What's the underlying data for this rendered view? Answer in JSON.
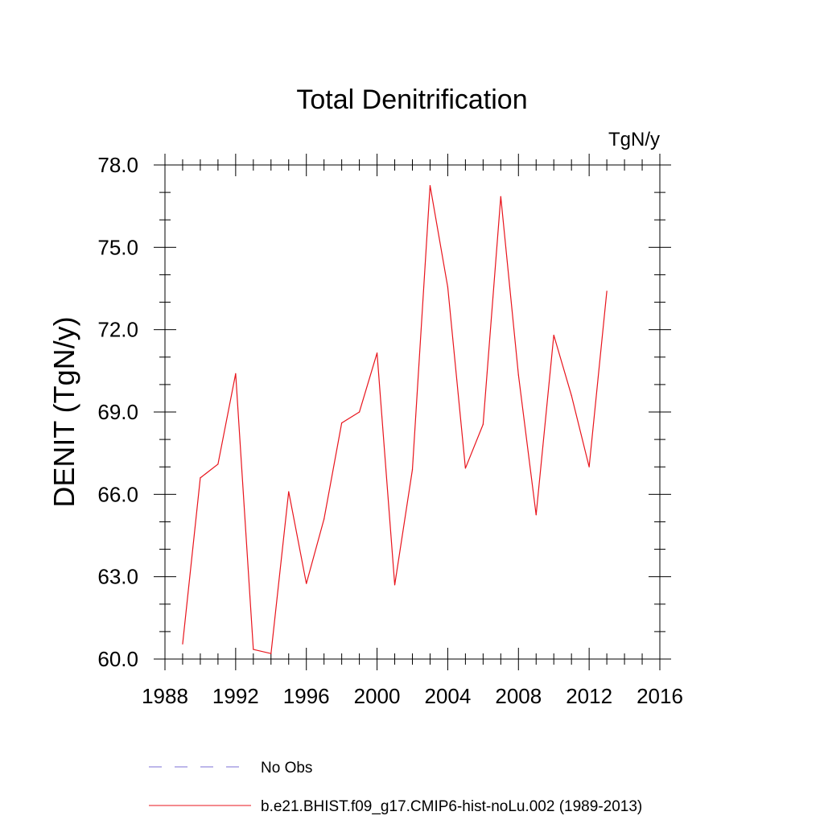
{
  "chart_data": {
    "type": "line",
    "title": "Total Denitrification",
    "units_label": "TgN/y",
    "ylabel": "DENIT  (TgN/y)",
    "xlabel": "",
    "xlim": [
      1988,
      2016
    ],
    "ylim": [
      60,
      78
    ],
    "x_ticks": [
      1988,
      1992,
      1996,
      2000,
      2004,
      2008,
      2012,
      2016
    ],
    "x_tick_labels": [
      "1988",
      "1992",
      "1996",
      "2000",
      "2004",
      "2008",
      "2012",
      "2016"
    ],
    "y_ticks": [
      60,
      63,
      66,
      69,
      72,
      75,
      78
    ],
    "y_tick_labels": [
      "60.0",
      "63.0",
      "66.0",
      "69.0",
      "72.0",
      "75.0",
      "78.0"
    ],
    "grid": false,
    "legend_placement": "bottom",
    "series": [
      {
        "name": "b.e21.BHIST.f09_g17.CMIP6-hist-noLu.002 (1989-2013)",
        "color": "#e8141c",
        "style": "solid",
        "x": [
          1989,
          1990,
          1991,
          1992,
          1993,
          1994,
          1995,
          1996,
          1997,
          1998,
          1999,
          2000,
          2001,
          2002,
          2003,
          2004,
          2005,
          2006,
          2007,
          2008,
          2009,
          2010,
          2011,
          2012,
          2013
        ],
        "values": [
          60.55,
          66.6,
          67.1,
          70.4,
          60.35,
          60.2,
          66.1,
          62.75,
          65.1,
          68.6,
          69.0,
          71.15,
          62.7,
          66.9,
          77.25,
          73.55,
          66.95,
          68.55,
          76.85,
          70.35,
          65.25,
          71.8,
          69.6,
          67.0,
          73.4
        ]
      }
    ],
    "legend": [
      {
        "label": "No Obs",
        "color": "#7b6fd6",
        "style": "dashed"
      },
      {
        "label": "b.e21.BHIST.f09_g17.CMIP6-hist-noLu.002 (1989-2013)",
        "color": "#e8141c",
        "style": "solid"
      }
    ]
  }
}
